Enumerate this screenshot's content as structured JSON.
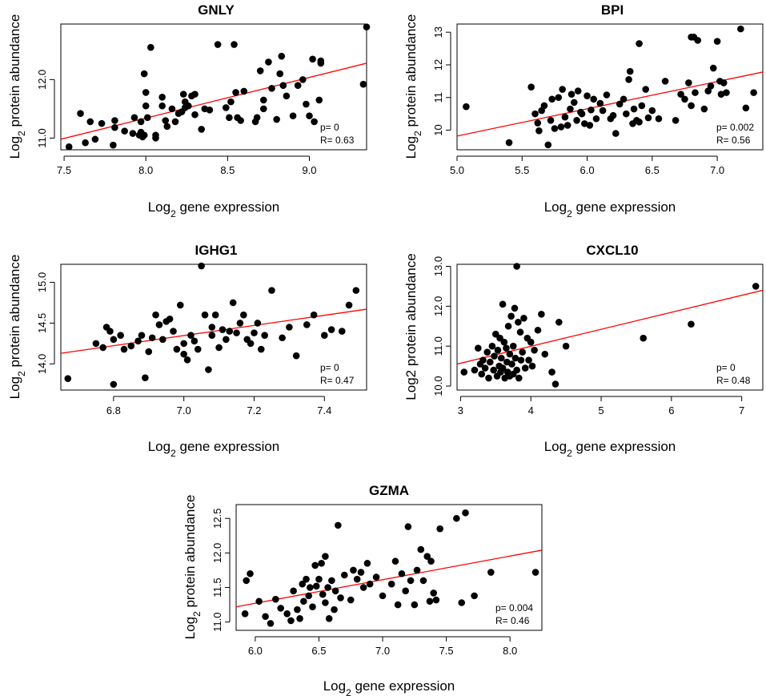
{
  "chart_data": [
    {
      "type": "scatter",
      "title": "GNLY",
      "xlabel": "Log2 gene expression",
      "ylabel": "Log2 protein abundance",
      "xlabel_parts": {
        "pre": "Log",
        "sub": "2",
        "post": " gene expression"
      },
      "ylabel_parts": {
        "pre": "Log",
        "sub": "2",
        "post": " protein abundance"
      },
      "xlim": [
        7.48,
        9.35
      ],
      "ylim": [
        10.8,
        12.95
      ],
      "xticks": [
        7.5,
        8.0,
        8.5,
        9.0
      ],
      "xtick_labels": [
        "7.5",
        "8.0",
        "8.5",
        "9.0"
      ],
      "yticks": [
        11.0,
        12.0
      ],
      "ytick_labels": [
        "11.0",
        "12.0"
      ],
      "p_text": "p= 0",
      "r_text": "R= 0.63",
      "fit": {
        "x": [
          7.48,
          9.35
        ],
        "y": [
          10.98,
          12.28
        ]
      },
      "x": [
        7.53,
        7.63,
        7.66,
        7.69,
        7.73,
        7.6,
        7.8,
        7.81,
        7.81,
        7.87,
        7.92,
        7.93,
        7.96,
        7.97,
        7.97,
        7.99,
        7.99,
        8.0,
        7.98,
        8.0,
        8.01,
        8.03,
        8.06,
        8.06,
        8.1,
        8.1,
        8.12,
        8.13,
        8.16,
        8.18,
        8.2,
        8.22,
        8.23,
        8.24,
        8.24,
        8.26,
        8.28,
        8.3,
        8.3,
        8.34,
        8.36,
        8.39,
        8.44,
        8.49,
        8.51,
        8.52,
        8.54,
        8.55,
        8.56,
        8.58,
        8.6,
        8.67,
        8.68,
        8.7,
        8.72,
        8.72,
        8.75,
        8.77,
        8.8,
        8.82,
        8.83,
        8.84,
        8.86,
        8.9,
        8.93,
        8.96,
        8.98,
        9.0,
        9.02,
        9.03,
        9.06,
        9.07,
        9.07,
        9.33,
        9.35
      ],
      "y": [
        10.85,
        10.92,
        11.28,
        10.98,
        11.25,
        11.42,
        10.88,
        11.3,
        11.18,
        11.12,
        11.08,
        11.35,
        11.05,
        11.1,
        11.28,
        11.05,
        12.1,
        11.78,
        11.02,
        11.55,
        11.35,
        12.55,
        11.0,
        11.05,
        11.55,
        11.7,
        11.3,
        11.2,
        11.5,
        11.28,
        11.42,
        11.45,
        11.75,
        11.62,
        11.52,
        11.55,
        11.72,
        11.4,
        11.75,
        11.15,
        11.5,
        11.48,
        12.6,
        11.52,
        11.35,
        11.62,
        12.6,
        11.78,
        11.35,
        11.3,
        11.8,
        11.28,
        11.35,
        12.15,
        11.65,
        11.5,
        12.3,
        11.85,
        11.32,
        12.1,
        12.4,
        11.9,
        11.72,
        11.38,
        11.9,
        12.0,
        11.58,
        11.38,
        12.35,
        11.28,
        11.65,
        12.28,
        12.32,
        11.92,
        12.9
      ]
    },
    {
      "type": "scatter",
      "title": "BPI",
      "xlabel": "Log2 gene expression",
      "ylabel": "Log2 protein abundance",
      "xlabel_parts": {
        "pre": "Log",
        "sub": "2",
        "post": " gene expression"
      },
      "ylabel_parts": {
        "pre": "Log",
        "sub": "2",
        "post": " protein abundance"
      },
      "xlim": [
        5.0,
        7.35
      ],
      "ylim": [
        9.4,
        13.25
      ],
      "xticks": [
        5.0,
        5.5,
        6.0,
        6.5,
        7.0
      ],
      "xtick_labels": [
        "5.0",
        "5.5",
        "6.0",
        "6.5",
        "7.0"
      ],
      "yticks": [
        10,
        11,
        12,
        13
      ],
      "ytick_labels": [
        "10",
        "11",
        "12",
        "13"
      ],
      "p_text": "p= 0.002",
      "r_text": "R= 0.56",
      "fit": {
        "x": [
          5.0,
          7.35
        ],
        "y": [
          9.82,
          11.78
        ]
      },
      "x": [
        5.07,
        5.4,
        5.57,
        5.6,
        5.62,
        5.63,
        5.65,
        5.67,
        5.7,
        5.72,
        5.73,
        5.75,
        5.78,
        5.8,
        5.81,
        5.83,
        5.85,
        5.87,
        5.88,
        5.9,
        5.92,
        5.93,
        5.95,
        5.96,
        5.98,
        6.0,
        6.02,
        6.03,
        6.05,
        6.07,
        6.1,
        6.12,
        6.15,
        6.18,
        6.2,
        6.22,
        6.25,
        6.28,
        6.3,
        6.32,
        6.33,
        6.35,
        6.36,
        6.38,
        6.4,
        6.4,
        6.42,
        6.45,
        6.47,
        6.5,
        6.55,
        6.6,
        6.68,
        6.72,
        6.75,
        6.78,
        6.8,
        6.8,
        6.82,
        6.83,
        6.85,
        6.9,
        6.93,
        6.95,
        6.97,
        7.0,
        7.02,
        7.03,
        7.05,
        7.07,
        7.18,
        7.22,
        7.28
      ],
      "y": [
        10.72,
        9.62,
        11.32,
        10.5,
        10.22,
        9.98,
        10.6,
        10.75,
        9.55,
        10.3,
        10.95,
        10.05,
        11.0,
        10.1,
        11.25,
        10.4,
        10.15,
        10.65,
        11.1,
        10.85,
        10.3,
        11.2,
        10.55,
        10.5,
        10.2,
        11.05,
        10.15,
        10.62,
        10.95,
        10.35,
        10.82,
        10.6,
        11.08,
        10.35,
        10.45,
        9.9,
        10.8,
        10.95,
        10.5,
        11.55,
        11.8,
        10.2,
        10.65,
        10.3,
        12.65,
        10.25,
        10.75,
        11.25,
        10.38,
        10.6,
        10.35,
        11.5,
        10.3,
        11.1,
        10.95,
        11.45,
        12.85,
        10.75,
        12.85,
        11.15,
        12.75,
        10.65,
        11.2,
        11.35,
        11.9,
        12.72,
        11.5,
        11.1,
        11.45,
        11.15,
        13.1,
        10.68,
        11.15
      ]
    },
    {
      "type": "scatter",
      "title": "IGHG1",
      "xlabel": "Log2 gene expression",
      "ylabel": "Log2 protein abundance",
      "xlabel_parts": {
        "pre": "Log",
        "sub": "2",
        "post": " gene expression"
      },
      "ylabel_parts": {
        "pre": "Log",
        "sub": "2",
        "post": " protein abundance"
      },
      "xlim": [
        6.65,
        7.52
      ],
      "ylim": [
        13.68,
        15.22
      ],
      "xticks": [
        6.8,
        7.0,
        7.2,
        7.4
      ],
      "xtick_labels": [
        "6.8",
        "7.0",
        "7.2",
        "7.4"
      ],
      "yticks": [
        14.0,
        14.5,
        15.0
      ],
      "ytick_labels": [
        "14.0",
        "14.5",
        "15.0"
      ],
      "p_text": "p= 0",
      "r_text": "R= 0.47",
      "fit": {
        "x": [
          6.65,
          7.52
        ],
        "y": [
          14.13,
          14.67
        ]
      },
      "x": [
        6.67,
        6.75,
        6.77,
        6.78,
        6.79,
        6.8,
        6.8,
        6.82,
        6.83,
        6.85,
        6.87,
        6.88,
        6.89,
        6.9,
        6.91,
        6.92,
        6.93,
        6.94,
        6.95,
        6.96,
        6.97,
        6.98,
        6.99,
        7.0,
        7.0,
        7.01,
        7.02,
        7.03,
        7.04,
        7.05,
        7.06,
        7.07,
        7.08,
        7.08,
        7.09,
        7.1,
        7.11,
        7.12,
        7.13,
        7.14,
        7.15,
        7.16,
        7.17,
        7.18,
        7.19,
        7.2,
        7.21,
        7.22,
        7.23,
        7.25,
        7.28,
        7.3,
        7.32,
        7.35,
        7.37,
        7.4,
        7.42,
        7.45,
        7.47,
        7.49
      ],
      "y": [
        13.82,
        14.25,
        14.2,
        14.45,
        14.4,
        14.3,
        13.75,
        14.35,
        14.18,
        14.22,
        14.28,
        14.35,
        13.83,
        14.15,
        14.32,
        14.6,
        14.48,
        14.3,
        14.52,
        14.55,
        14.4,
        14.18,
        14.72,
        14.25,
        14.12,
        14.05,
        14.35,
        14.28,
        14.18,
        15.2,
        14.6,
        13.93,
        14.45,
        14.35,
        14.6,
        14.2,
        14.42,
        14.3,
        14.4,
        14.75,
        14.38,
        14.5,
        14.6,
        14.3,
        14.25,
        14.38,
        14.5,
        14.18,
        14.35,
        14.9,
        14.32,
        14.45,
        14.1,
        14.48,
        14.6,
        14.35,
        14.42,
        14.4,
        14.72,
        14.9
      ]
    },
    {
      "type": "scatter",
      "title": "CXCL10",
      "xlabel": "Log2 gene expression",
      "ylabel": "Log2 protein abundance",
      "xlabel_parts": {
        "pre": "Log",
        "sub": "2",
        "post": " gene expression",
        "plain": true
      },
      "ylabel_parts": {
        "pre": "Log2 protein abundance",
        "sub": "",
        "post": "",
        "plain": true
      },
      "xlim": [
        2.95,
        7.3
      ],
      "ylim": [
        9.9,
        13.05
      ],
      "xticks": [
        3,
        4,
        5,
        6,
        7
      ],
      "xtick_labels": [
        "3",
        "4",
        "5",
        "6",
        "7"
      ],
      "yticks": [
        10.0,
        11.0,
        12.0,
        13.0
      ],
      "ytick_labels": [
        "10.0",
        "11.0",
        "12.0",
        "13.0"
      ],
      "p_text": "p= 0",
      "r_text": "R= 0.48",
      "fit": {
        "x": [
          2.95,
          7.3
        ],
        "y": [
          10.55,
          12.4
        ]
      },
      "x": [
        3.05,
        3.2,
        3.25,
        3.28,
        3.3,
        3.32,
        3.35,
        3.38,
        3.4,
        3.42,
        3.45,
        3.47,
        3.48,
        3.5,
        3.52,
        3.53,
        3.55,
        3.56,
        3.57,
        3.58,
        3.6,
        3.6,
        3.62,
        3.63,
        3.65,
        3.66,
        3.67,
        3.68,
        3.7,
        3.7,
        3.72,
        3.73,
        3.75,
        3.75,
        3.77,
        3.78,
        3.8,
        3.8,
        3.82,
        3.83,
        3.85,
        3.86,
        3.88,
        3.9,
        3.92,
        3.95,
        3.97,
        4.0,
        4.02,
        4.05,
        4.1,
        4.15,
        4.2,
        4.3,
        4.35,
        4.4,
        4.5,
        5.6,
        6.28,
        7.2
      ],
      "y": [
        10.35,
        10.4,
        10.95,
        10.55,
        10.3,
        10.65,
        10.45,
        10.85,
        10.2,
        10.6,
        11.0,
        10.4,
        10.75,
        11.3,
        10.25,
        10.9,
        10.5,
        11.2,
        10.35,
        10.7,
        12.05,
        10.45,
        11.1,
        10.2,
        10.95,
        10.6,
        10.35,
        11.5,
        10.8,
        10.25,
        11.75,
        10.55,
        11.0,
        10.3,
        11.95,
        10.7,
        13.0,
        10.4,
        11.6,
        10.2,
        11.35,
        10.65,
        10.85,
        11.7,
        10.45,
        11.2,
        10.65,
        11.1,
        10.5,
        10.9,
        11.4,
        11.8,
        10.8,
        10.35,
        10.05,
        11.6,
        11.0,
        11.2,
        11.55,
        12.5
      ]
    },
    {
      "type": "scatter",
      "title": "GZMA",
      "xlabel": "Log2 gene expression",
      "ylabel": "Log2 protein abundance",
      "xlabel_parts": {
        "pre": "Log",
        "sub": "2",
        "post": " gene expression"
      },
      "ylabel_parts": {
        "pre": "Log",
        "sub": "2",
        "post": " protein abundance"
      },
      "xlim": [
        5.85,
        8.25
      ],
      "ylim": [
        10.88,
        12.7
      ],
      "xticks": [
        6.0,
        6.5,
        7.0,
        7.5,
        8.0
      ],
      "xtick_labels": [
        "6.0",
        "6.5",
        "7.0",
        "7.5",
        "8.0"
      ],
      "yticks": [
        11.0,
        11.5,
        12.0,
        12.5
      ],
      "ytick_labels": [
        "11.0",
        "11.5",
        "12.0",
        "12.5"
      ],
      "p_text": "p= 0.004",
      "r_text": "R= 0.46",
      "fit": {
        "x": [
          5.85,
          8.25
        ],
        "y": [
          11.22,
          12.04
        ]
      },
      "x": [
        5.92,
        5.93,
        5.96,
        6.03,
        6.08,
        6.12,
        6.16,
        6.2,
        6.25,
        6.28,
        6.3,
        6.33,
        6.35,
        6.37,
        6.38,
        6.4,
        6.42,
        6.43,
        6.45,
        6.47,
        6.48,
        6.5,
        6.52,
        6.53,
        6.55,
        6.55,
        6.57,
        6.58,
        6.6,
        6.62,
        6.63,
        6.65,
        6.67,
        6.7,
        6.75,
        6.77,
        6.8,
        6.83,
        6.85,
        6.88,
        6.9,
        6.95,
        7.0,
        7.07,
        7.1,
        7.12,
        7.15,
        7.18,
        7.2,
        7.22,
        7.25,
        7.27,
        7.3,
        7.32,
        7.35,
        7.37,
        7.38,
        7.4,
        7.42,
        7.45,
        7.58,
        7.62,
        7.65,
        7.72,
        7.85,
        8.2
      ],
      "y": [
        11.12,
        11.6,
        11.7,
        11.3,
        11.08,
        10.98,
        11.33,
        11.2,
        11.12,
        11.02,
        11.45,
        11.18,
        11.05,
        11.55,
        11.3,
        11.62,
        11.38,
        11.5,
        11.22,
        11.82,
        11.52,
        11.62,
        11.85,
        11.4,
        11.95,
        11.28,
        11.5,
        11.05,
        11.6,
        11.18,
        11.45,
        12.4,
        11.35,
        11.68,
        11.32,
        11.75,
        11.62,
        11.72,
        11.5,
        11.85,
        11.55,
        11.65,
        11.38,
        11.55,
        11.88,
        11.25,
        11.7,
        11.45,
        12.38,
        11.6,
        11.25,
        11.75,
        12.05,
        11.6,
        11.95,
        11.3,
        11.88,
        11.42,
        11.32,
        12.35,
        12.5,
        11.28,
        12.58,
        11.38,
        11.72,
        11.72
      ]
    }
  ]
}
